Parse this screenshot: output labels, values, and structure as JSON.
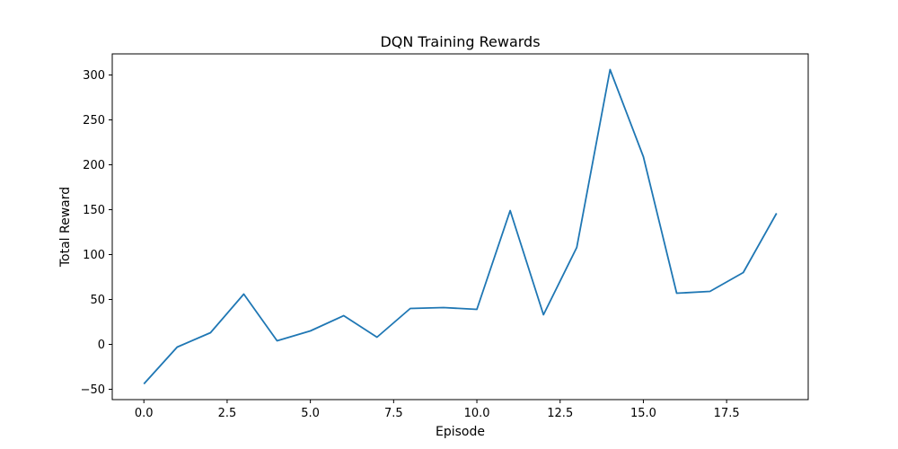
{
  "chart_data": {
    "type": "line",
    "title": "DQN Training Rewards",
    "xlabel": "Episode",
    "ylabel": "Total Reward",
    "x": [
      0,
      1,
      2,
      3,
      4,
      5,
      6,
      7,
      8,
      9,
      10,
      11,
      12,
      13,
      14,
      15,
      16,
      17,
      18,
      19
    ],
    "series": [
      {
        "values": [
          -44,
          -3,
          13,
          56,
          4,
          15,
          32,
          8,
          40,
          41,
          39,
          149,
          33,
          108,
          306,
          209,
          57,
          59,
          80,
          146
        ],
        "color": "#1f77b4"
      }
    ],
    "xlim": [
      -0.95,
      19.95
    ],
    "ylim": [
      -61.5,
      323.5
    ],
    "xticks": [
      0.0,
      2.5,
      5.0,
      7.5,
      10.0,
      12.5,
      15.0,
      17.5
    ],
    "xtick_labels": [
      "0.0",
      "2.5",
      "5.0",
      "7.5",
      "10.0",
      "12.5",
      "15.0",
      "17.5"
    ],
    "yticks": [
      -50,
      0,
      50,
      100,
      150,
      200,
      250,
      300
    ],
    "ytick_labels": [
      "−50",
      "0",
      "50",
      "100",
      "150",
      "200",
      "250",
      "300"
    ],
    "grid": false,
    "legend": "none"
  }
}
